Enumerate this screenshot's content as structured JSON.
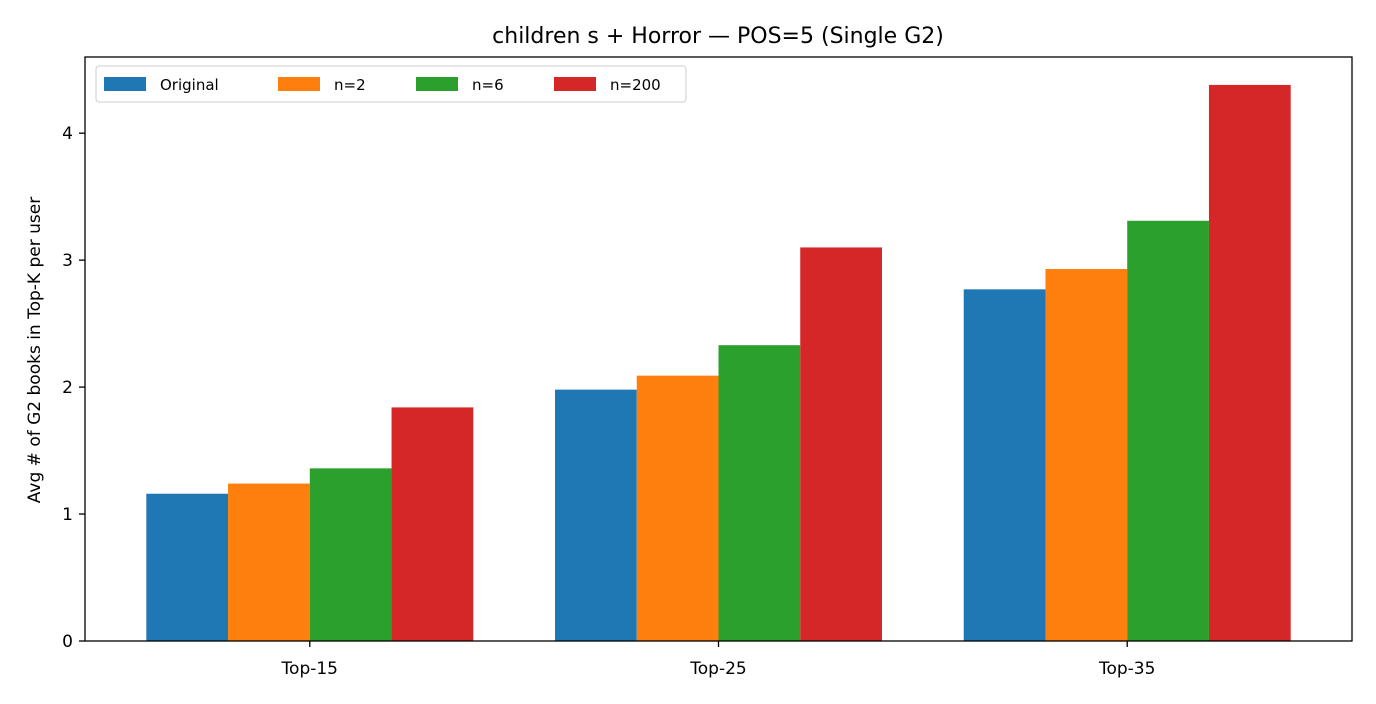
{
  "chart_data": {
    "type": "bar",
    "title": "children s + Horror — POS=5 (Single G2)",
    "xlabel": "",
    "ylabel": "Avg # of G2 books in Top-K per user",
    "categories": [
      "Top-15",
      "Top-25",
      "Top-35"
    ],
    "ylim": [
      0,
      4.6
    ],
    "yticks": [
      0,
      1,
      2,
      3,
      4
    ],
    "grid": false,
    "legend_position": "top-left",
    "series": [
      {
        "name": "Original",
        "color": "#1f77b4",
        "values": [
          1.16,
          1.98,
          2.77
        ]
      },
      {
        "name": "n=2",
        "color": "#ff7f0e",
        "values": [
          1.24,
          2.09,
          2.93
        ]
      },
      {
        "name": "n=6",
        "color": "#2ca02c",
        "values": [
          1.36,
          2.33,
          3.31
        ]
      },
      {
        "name": "n=200",
        "color": "#d62728",
        "values": [
          1.84,
          3.1,
          4.38
        ]
      }
    ]
  }
}
